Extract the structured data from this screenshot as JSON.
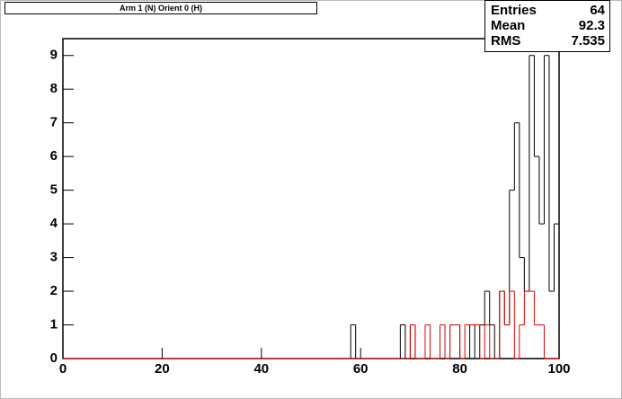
{
  "chart_data": {
    "type": "histogram",
    "title": "Arm 1 (N) Orient 0 (H)",
    "bins": [
      0,
      58,
      59,
      60,
      61,
      62,
      63,
      64,
      65,
      66,
      67,
      68,
      69,
      70,
      71,
      72,
      73,
      74,
      75,
      76,
      77,
      78,
      79,
      80,
      81,
      82,
      83,
      84,
      85,
      86,
      87,
      88,
      89,
      90,
      91,
      92,
      93,
      94,
      95,
      96,
      97,
      98,
      99,
      100
    ],
    "series": [
      {
        "color": "#000000",
        "values": [
          0,
          1,
          0,
          0,
          0,
          0,
          0,
          0,
          0,
          0,
          0,
          1,
          0,
          1,
          0,
          0,
          0,
          0,
          0,
          0,
          0,
          1,
          1,
          0,
          0,
          1,
          0,
          1,
          2,
          1,
          0,
          2,
          1,
          5,
          7,
          3,
          2,
          9,
          6,
          4,
          9,
          2,
          4
        ]
      },
      {
        "color": "#e00000",
        "values": [
          0,
          0,
          0,
          0,
          0,
          0,
          0,
          0,
          0,
          0,
          0,
          0,
          0,
          1,
          0,
          0,
          1,
          0,
          0,
          1,
          0,
          1,
          1,
          0,
          1,
          1,
          1,
          0,
          1,
          0,
          0,
          2,
          1,
          2,
          0,
          1,
          2,
          2,
          1,
          1,
          0,
          0,
          0
        ]
      }
    ],
    "xlim": [
      0,
      100
    ],
    "xticks": [
      0,
      20,
      40,
      60,
      80,
      100
    ],
    "ylim": [
      0,
      9.5
    ],
    "yticks": [
      0,
      1,
      2,
      3,
      4,
      5,
      6,
      7,
      8,
      9
    ],
    "stats": [
      {
        "label": "Entries",
        "value": 64
      },
      {
        "label": "Mean",
        "value": 92.3
      },
      {
        "label": "RMS",
        "value": 7.535
      }
    ]
  }
}
